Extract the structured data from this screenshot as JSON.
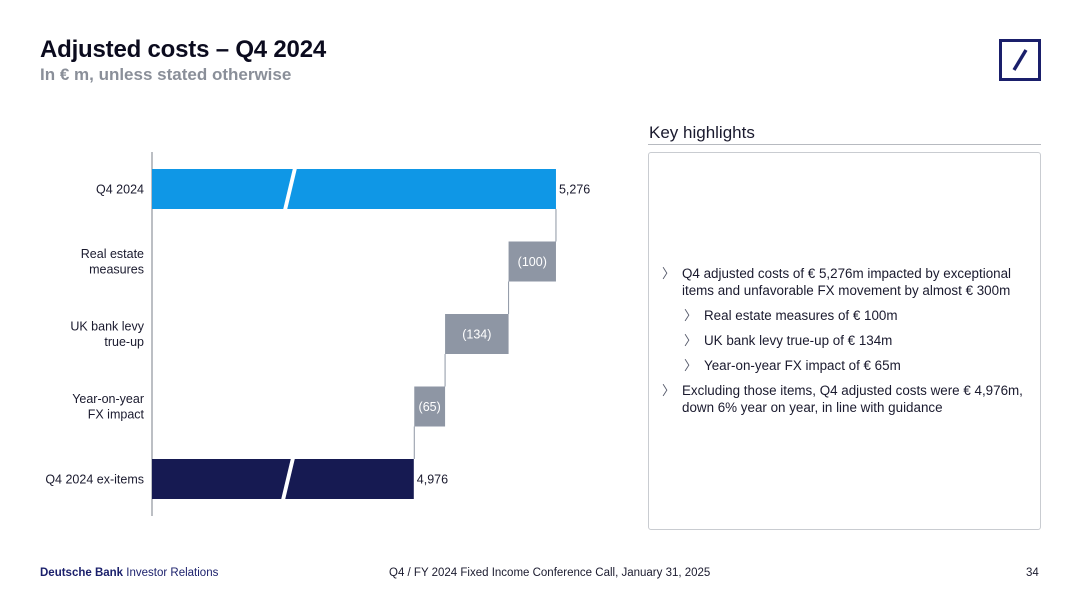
{
  "header": {
    "title": "Adjusted costs – Q4 2024",
    "subtitle": "In € m, unless stated otherwise"
  },
  "chart_data": {
    "type": "bar",
    "orientation": "horizontal-waterfall",
    "categories": [
      "Q4 2024",
      "Real estate measures",
      "UK bank levy true-up",
      "Year-on-year FX impact",
      "Q4 2024 ex-items"
    ],
    "category_lines": [
      [
        "Q4 2024"
      ],
      [
        "Real estate",
        "measures"
      ],
      [
        "UK bank levy",
        "true-up"
      ],
      [
        "Year-on-year",
        "FX impact"
      ],
      [
        "Q4 2024 ex-items"
      ]
    ],
    "values": [
      5276,
      -100,
      -134,
      -65,
      4976
    ],
    "kinds": [
      "total",
      "delta",
      "delta",
      "delta",
      "total"
    ],
    "labels": [
      "5,276",
      "(100)",
      "(134)",
      "(65)",
      "4,976"
    ],
    "colors": [
      "#0f97e6",
      "#8e96a4",
      "#8e96a4",
      "#8e96a4",
      "#161a52"
    ],
    "axis_break": true,
    "grid": false
  },
  "highlights": {
    "title": "Key highlights",
    "items": [
      {
        "level": 1,
        "text": "Q4 adjusted costs of € 5,276m impacted by exceptional items and unfavorable FX movement by almost € 300m"
      },
      {
        "level": 2,
        "text": "Real estate measures of € 100m"
      },
      {
        "level": 2,
        "text": "UK bank levy true-up of € 134m"
      },
      {
        "level": 2,
        "text": "Year-on-year FX impact of € 65m"
      },
      {
        "level": 1,
        "text": "Excluding those items, Q4 adjusted costs were € 4,976m, down 6% year on year, in line with guidance"
      }
    ],
    "bullet_glyph": "〉"
  },
  "footer": {
    "brand": "Deutsche Bank",
    "section": "Investor Relations",
    "event": "Q4 / FY 2024 Fixed Income Conference Call, January 31, 2025",
    "page": "34"
  },
  "colors": {
    "brand_navy": "#1a1f6b",
    "bar_blue": "#0f97e6",
    "bar_grey": "#8e96a4",
    "bar_navy": "#161a52"
  }
}
